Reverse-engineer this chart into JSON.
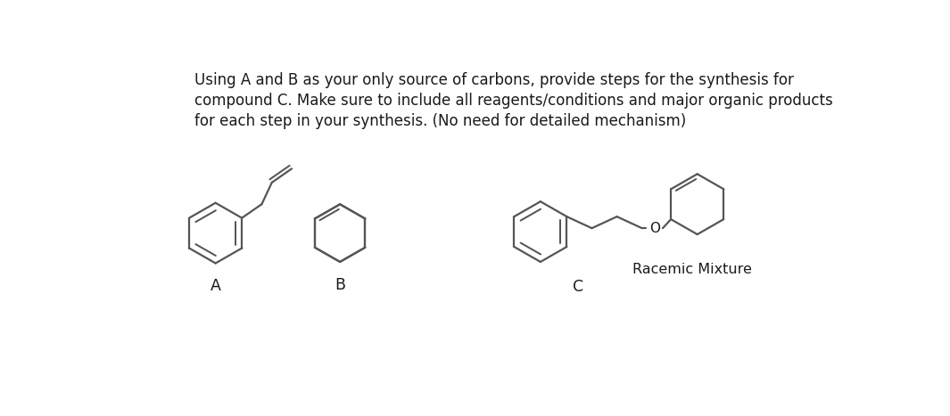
{
  "title_line1": "Using A and B as your only source of carbons, provide steps for the synthesis for",
  "title_line2": "compound C. Make sure to include all reagents/conditions and major organic products",
  "title_line3": "for each step in your synthesis. (No need for detailed mechanism)",
  "label_A": "A",
  "label_B": "B",
  "label_C": "C",
  "label_racemic": "Racemic Mixture",
  "bg_color": "#ffffff",
  "line_color": "#555555",
  "text_color": "#1a1a1a",
  "line_width": 1.6,
  "title_fontsize": 12.0,
  "label_fontsize": 12.5
}
